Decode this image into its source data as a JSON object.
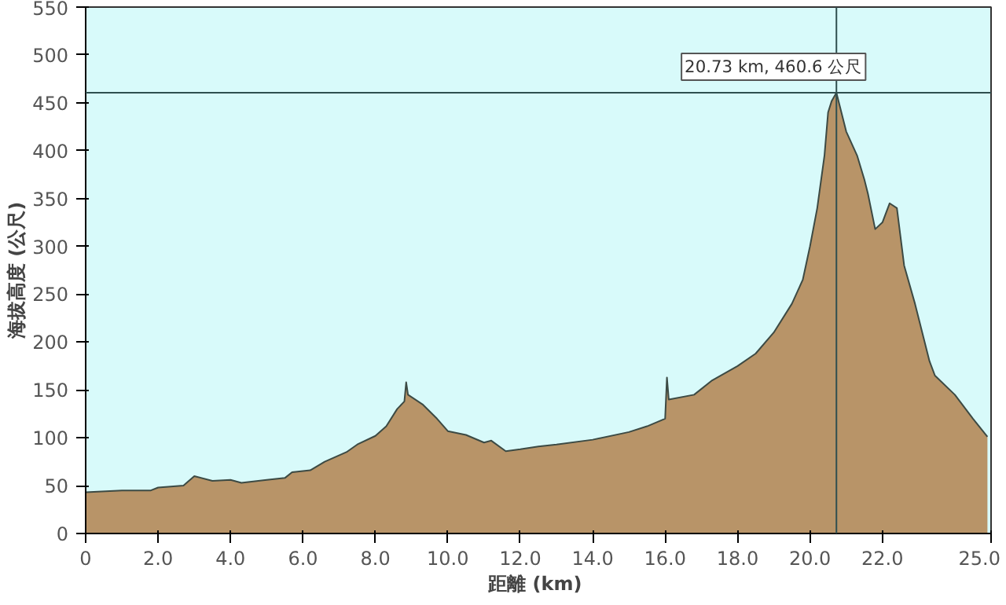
{
  "chart_data": {
    "type": "area",
    "xlabel": "距離  (km)",
    "ylabel": "海拔高度 (公尺)",
    "x": [
      0,
      1.0,
      1.8,
      2.0,
      2.7,
      3.0,
      3.5,
      4.0,
      4.3,
      5.0,
      5.5,
      5.7,
      6.2,
      6.6,
      7.2,
      7.5,
      8.0,
      8.3,
      8.6,
      8.8,
      8.85,
      8.9,
      9.3,
      9.7,
      10.0,
      10.5,
      11.0,
      11.2,
      11.6,
      12.0,
      12.5,
      13.0,
      14.0,
      15.0,
      15.5,
      16.0,
      16.05,
      16.1,
      16.8,
      17.3,
      18.0,
      18.5,
      19.0,
      19.5,
      19.8,
      20.0,
      20.2,
      20.4,
      20.5,
      20.6,
      20.73,
      21.0,
      21.3,
      21.5,
      21.6,
      21.8,
      22.0,
      22.2,
      22.4,
      22.6,
      22.9,
      23.3,
      23.45,
      24.0,
      24.5,
      24.9
    ],
    "series": [
      {
        "color": "#b89468",
        "values": [
          43,
          45,
          45,
          48,
          50,
          60,
          55,
          56,
          53,
          56,
          58,
          64,
          66,
          75,
          85,
          93,
          102,
          112,
          130,
          138,
          158,
          145,
          135,
          120,
          107,
          103,
          95,
          97,
          86,
          88,
          91,
          93,
          98,
          106,
          112,
          120,
          163,
          140,
          145,
          160,
          175,
          188,
          210,
          240,
          265,
          300,
          340,
          395,
          440,
          452,
          460.6,
          420,
          395,
          370,
          355,
          318,
          325,
          345,
          340,
          280,
          240,
          180,
          165,
          145,
          120,
          101
        ]
      }
    ],
    "xlim": [
      0,
      25
    ],
    "xticks": [
      0,
      {
        "value": 2,
        "label": "2.0"
      },
      {
        "value": 4,
        "label": "4.0"
      },
      {
        "value": 6,
        "label": "6.0"
      },
      {
        "value": 8,
        "label": "8.0"
      },
      {
        "value": 10,
        "label": "10.0"
      },
      {
        "value": 12,
        "label": "12.0"
      },
      {
        "value": 14,
        "label": "14.0"
      },
      {
        "value": 16,
        "label": "16.0"
      },
      {
        "value": 18,
        "label": "18.0"
      },
      {
        "value": 20,
        "label": "20.0"
      },
      {
        "value": 22,
        "label": "22.0"
      },
      {
        "value": 25,
        "label": "25.0"
      }
    ],
    "ylim": [
      0,
      550
    ],
    "yticks": [
      0,
      50,
      100,
      150,
      200,
      250,
      300,
      350,
      400,
      450,
      500,
      550
    ],
    "grid": false,
    "ref_lines": [
      {
        "axis": "x",
        "value": 20.73,
        "color": "#2f4f4f"
      },
      {
        "axis": "y",
        "value": 460.6,
        "color": "#2f4f4f"
      }
    ],
    "annotations": [
      {
        "text": "20.73 km, 460.6 公尺",
        "x": 20.73,
        "y": 460.6
      }
    ]
  }
}
